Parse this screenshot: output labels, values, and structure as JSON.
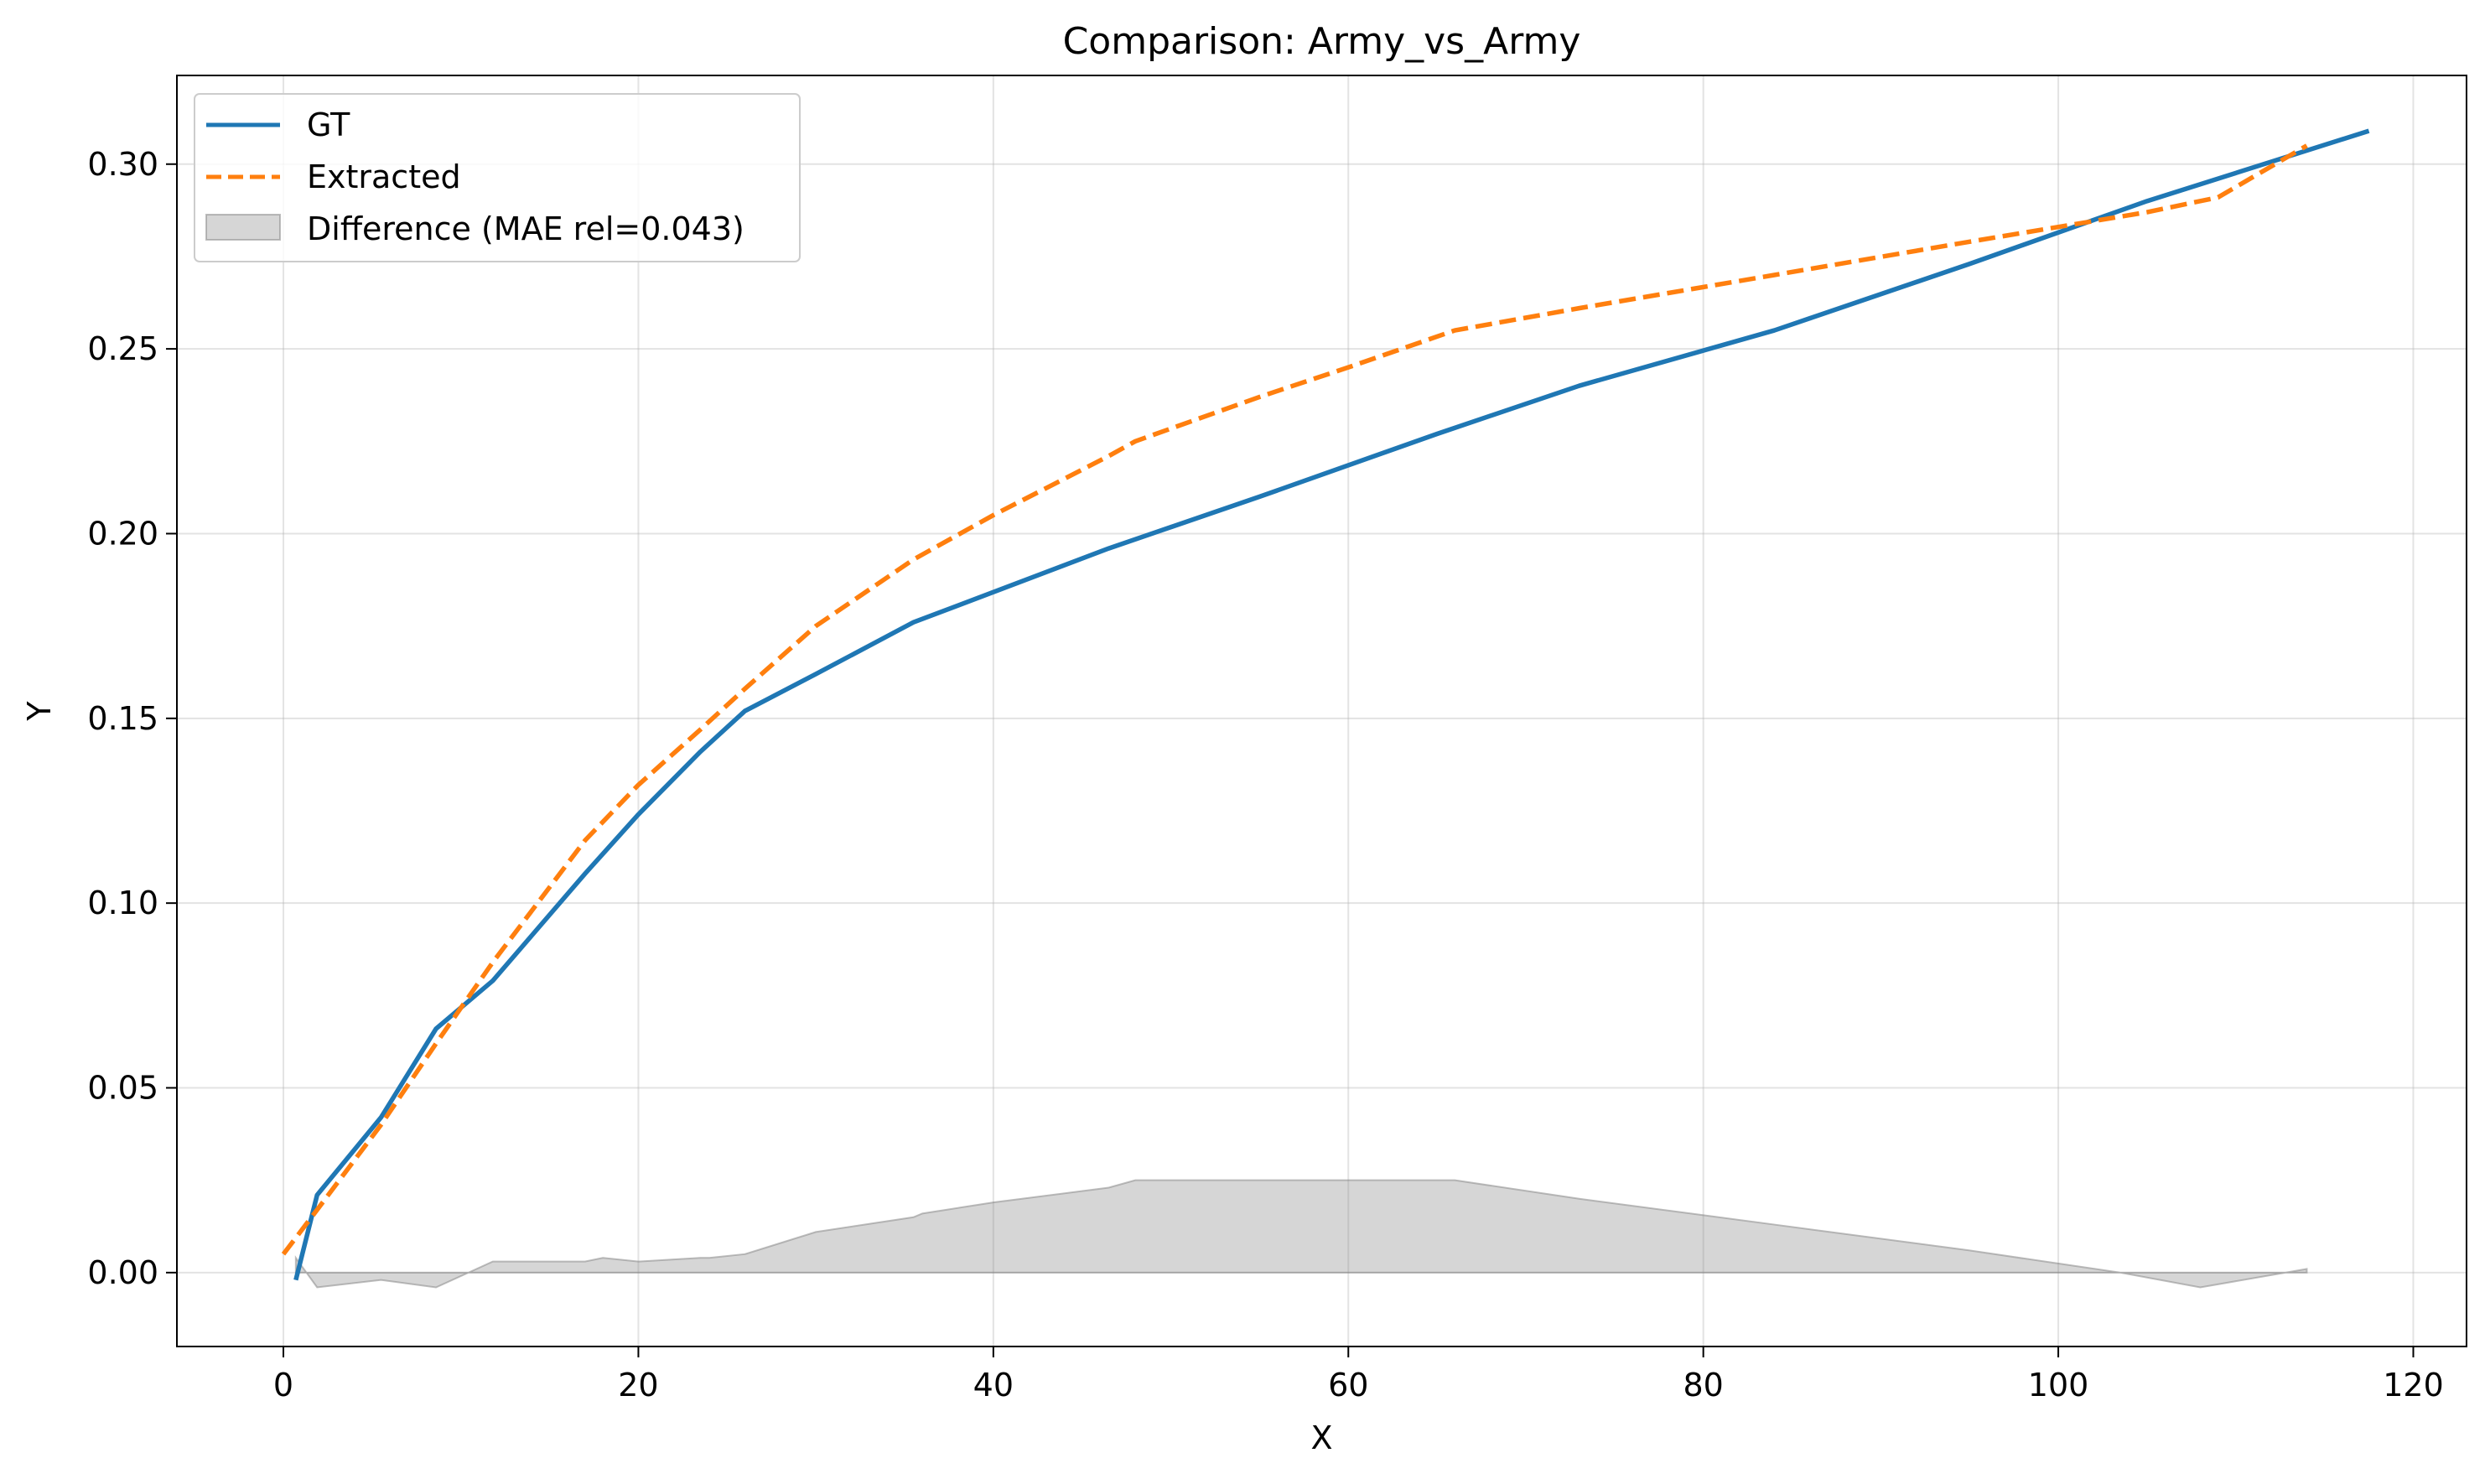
{
  "chart_data": {
    "type": "line",
    "title": "Comparison: Army_vs_Army",
    "xlabel": "X",
    "ylabel": "Y",
    "xlim": [
      -6,
      123
    ],
    "ylim": [
      -0.02,
      0.324
    ],
    "xticks": [
      0,
      20,
      40,
      60,
      80,
      100,
      120
    ],
    "xtick_labels": [
      "0",
      "20",
      "40",
      "60",
      "80",
      "100",
      "120"
    ],
    "yticks": [
      0.0,
      0.05,
      0.1,
      0.15,
      0.2,
      0.25,
      0.3
    ],
    "ytick_labels": [
      "0.00",
      "0.05",
      "0.10",
      "0.15",
      "0.20",
      "0.25",
      "0.30"
    ],
    "grid": true,
    "legend_position": "upper-left",
    "series": [
      {
        "name": "GT",
        "style": "solid",
        "color": "#1f77b4",
        "x": [
          0.7,
          1.9,
          5.5,
          8.6,
          11.8,
          17.0,
          20.0,
          23.5,
          26.0,
          30.0,
          35.5,
          46.5,
          55.0,
          65.0,
          73.0,
          84.0,
          95.0,
          105.0,
          117.5
        ],
        "y": [
          -0.002,
          0.021,
          0.042,
          0.066,
          0.079,
          0.108,
          0.124,
          0.141,
          0.152,
          0.162,
          0.176,
          0.196,
          0.21,
          0.227,
          0.24,
          0.255,
          0.273,
          0.29,
          0.309
        ]
      },
      {
        "name": "Extracted",
        "style": "dashed",
        "color": "#ff7f0e",
        "x": [
          0.0,
          1.9,
          5.5,
          8.6,
          11.8,
          17.0,
          20.0,
          23.5,
          26.0,
          30.0,
          35.5,
          40.0,
          46.5,
          48.0,
          55.0,
          60.0,
          66.0,
          73.0,
          84.0,
          95.0,
          105.0,
          109.0,
          114.0
        ],
        "y": [
          0.005,
          0.017,
          0.04,
          0.062,
          0.084,
          0.117,
          0.132,
          0.147,
          0.158,
          0.175,
          0.193,
          0.205,
          0.221,
          0.225,
          0.237,
          0.245,
          0.255,
          0.261,
          0.27,
          0.279,
          0.287,
          0.291,
          0.305
        ]
      }
    ],
    "fill": {
      "name": "Difference (MAE rel=0.043)",
      "color": "#808080",
      "opacity": 0.32,
      "x": [
        0.7,
        1.9,
        5.5,
        8.6,
        11.8,
        17.0,
        18.0,
        20.0,
        23.5,
        24.0,
        26.0,
        30.0,
        35.5,
        36.0,
        40.0,
        46.5,
        48.0,
        55.0,
        60.0,
        66.0,
        73.0,
        84.0,
        95.0,
        103.5,
        108.0,
        114.0
      ],
      "y": [
        0.004,
        -0.004,
        -0.002,
        -0.004,
        0.003,
        0.003,
        0.004,
        0.003,
        0.004,
        0.004,
        0.005,
        0.011,
        0.015,
        0.016,
        0.019,
        0.023,
        0.025,
        0.025,
        0.025,
        0.025,
        0.02,
        0.013,
        0.006,
        0.0,
        -0.004,
        0.001
      ]
    }
  }
}
